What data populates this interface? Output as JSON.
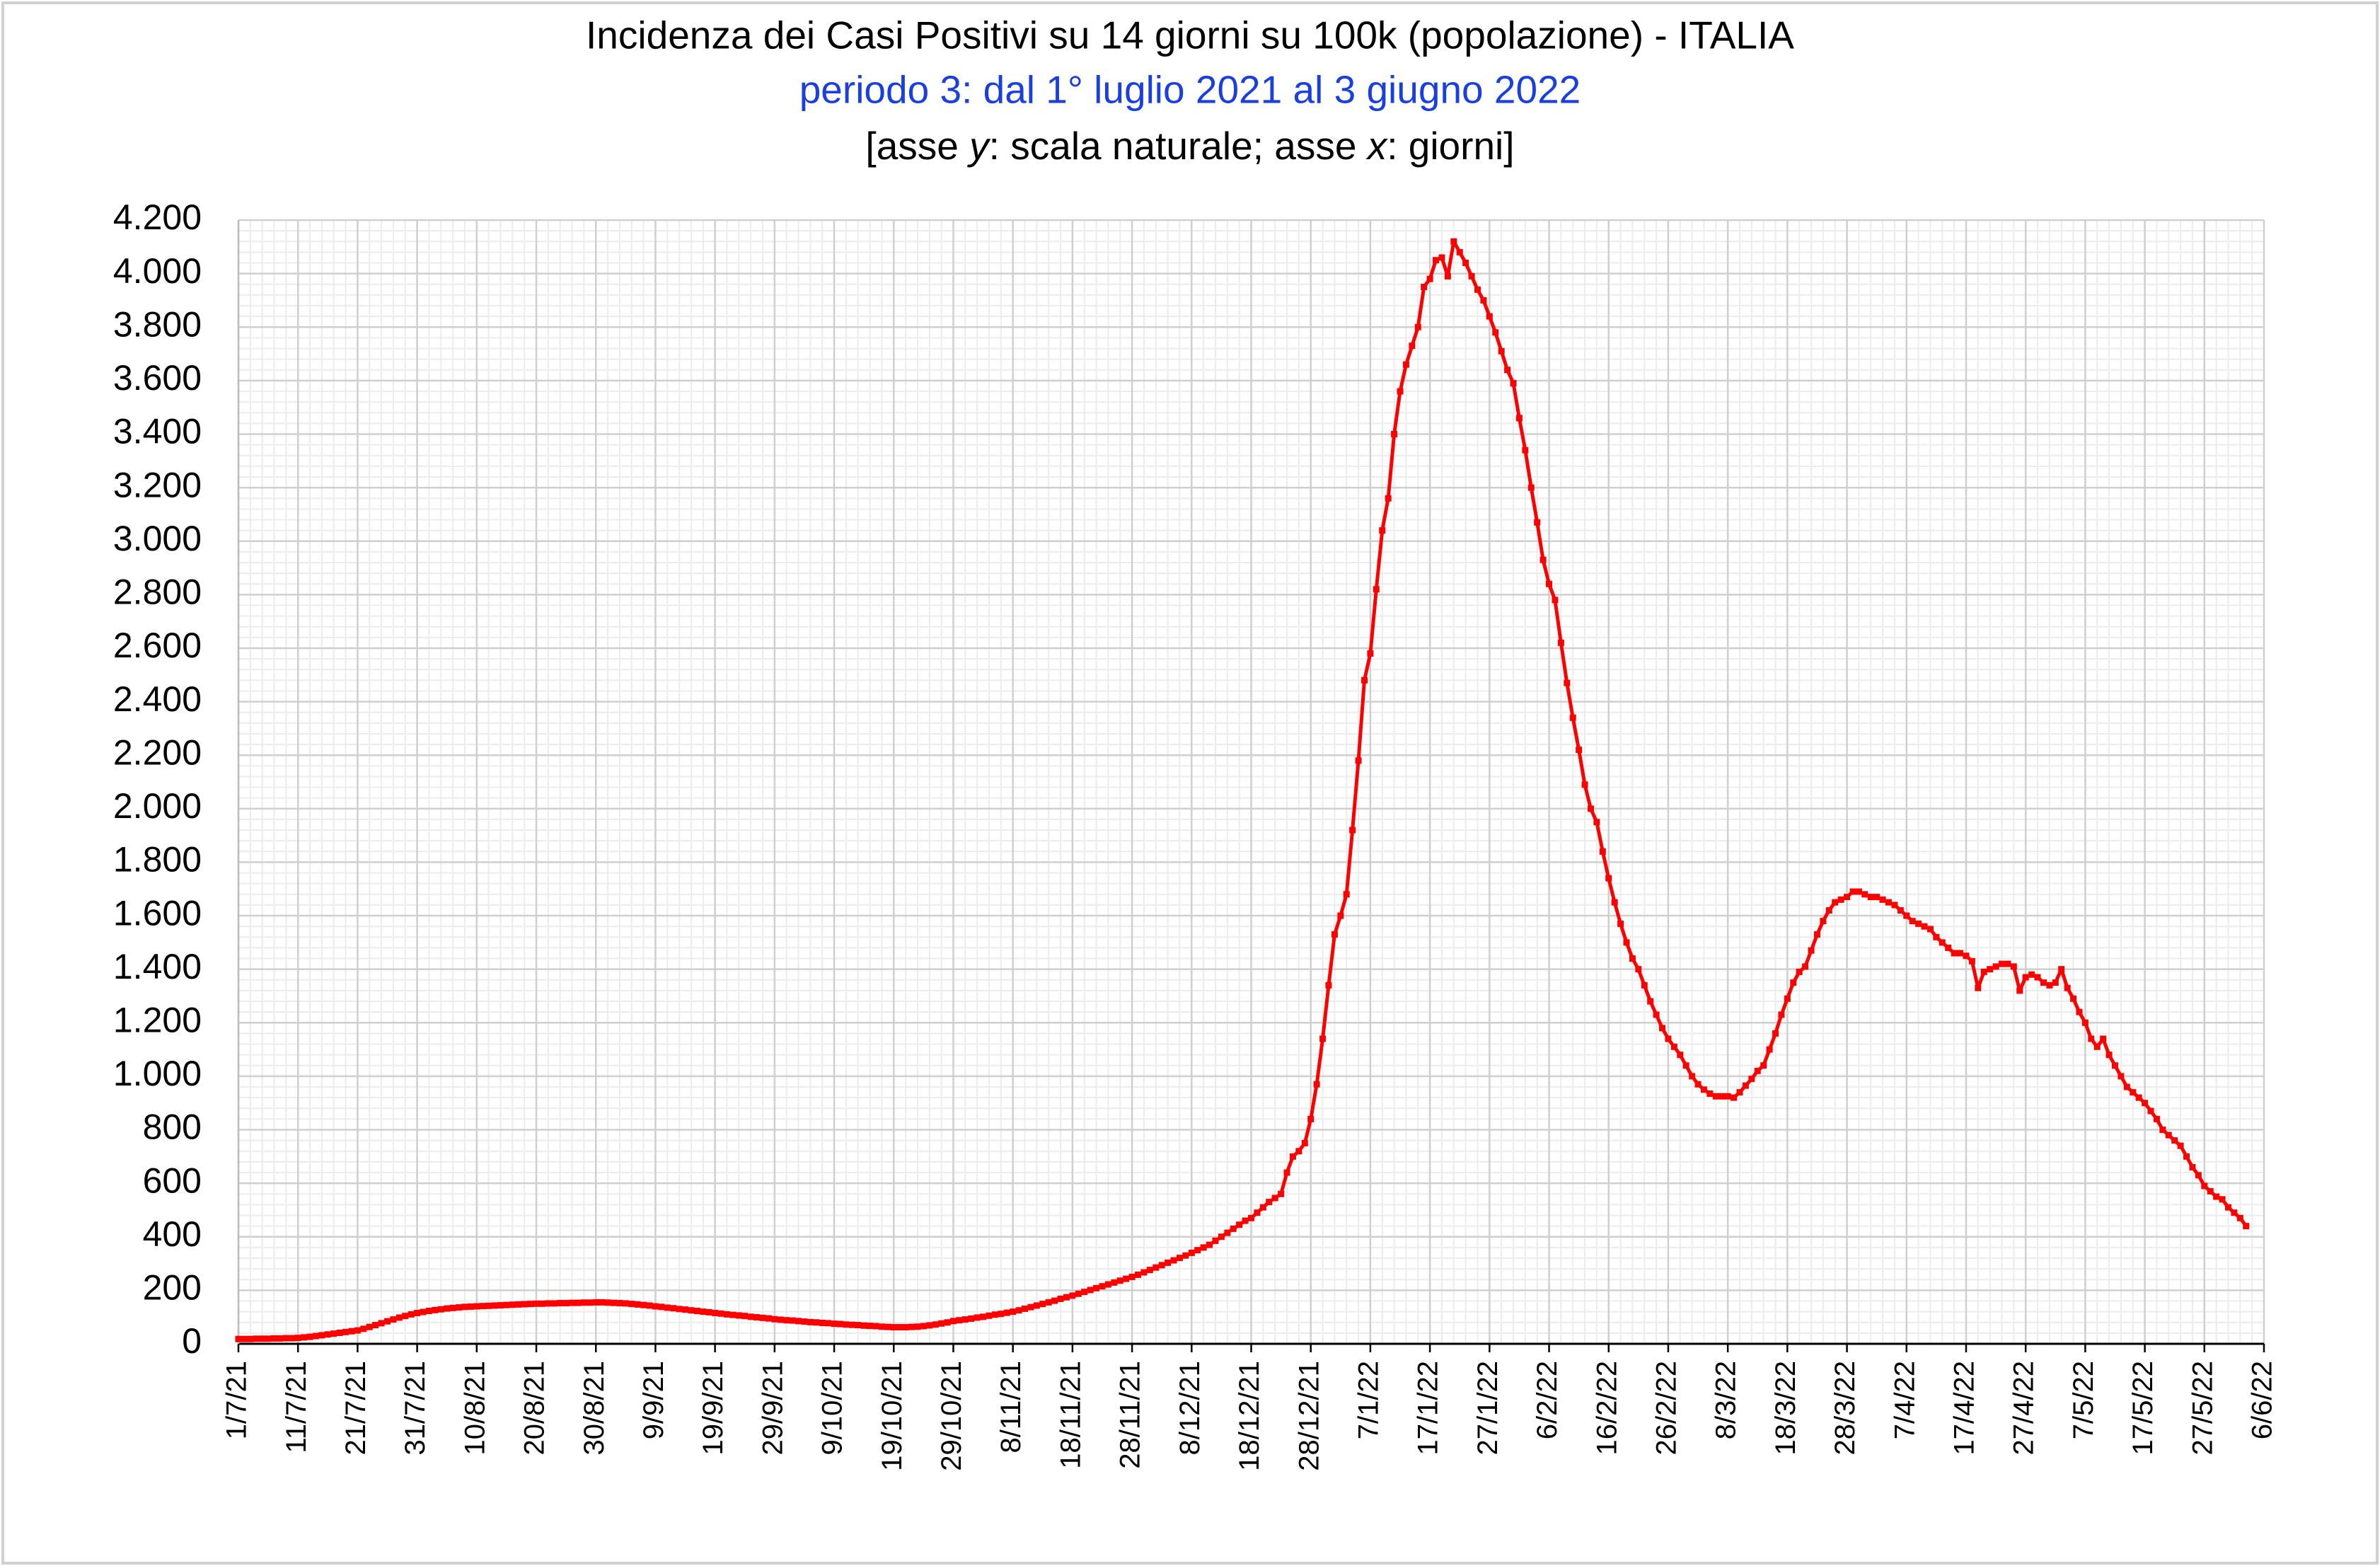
{
  "chart_data": {
    "type": "line",
    "title": "Incidenza dei Casi Positivi su 14 giorni su 100k (popolazione) - ITALIA",
    "subtitle": "periodo 3: dal 1° luglio 2021 al 3 giugno 2022",
    "note": [
      "[asse ",
      "y",
      ": scala naturale; asse ",
      "x",
      ": giorni]"
    ],
    "categories": [
      "1/7/21",
      null,
      null,
      null,
      null,
      null,
      null,
      null,
      null,
      null,
      "11/7/21",
      null,
      null,
      null,
      null,
      null,
      null,
      null,
      null,
      null,
      "21/7/21",
      null,
      null,
      null,
      null,
      null,
      null,
      null,
      null,
      null,
      "31/7/21",
      null,
      null,
      null,
      null,
      null,
      null,
      null,
      null,
      null,
      "10/8/21",
      null,
      null,
      null,
      null,
      null,
      null,
      null,
      null,
      null,
      "20/8/21",
      null,
      null,
      null,
      null,
      null,
      null,
      null,
      null,
      null,
      "30/8/21",
      null,
      null,
      null,
      null,
      null,
      null,
      null,
      null,
      null,
      "9/9/21",
      null,
      null,
      null,
      null,
      null,
      null,
      null,
      null,
      null,
      "19/9/21",
      null,
      null,
      null,
      null,
      null,
      null,
      null,
      null,
      null,
      "29/9/21",
      null,
      null,
      null,
      null,
      null,
      null,
      null,
      null,
      null,
      "9/10/21",
      null,
      null,
      null,
      null,
      null,
      null,
      null,
      null,
      null,
      "19/10/21",
      null,
      null,
      null,
      null,
      null,
      null,
      null,
      null,
      null,
      "29/10/21",
      null,
      null,
      null,
      null,
      null,
      null,
      null,
      null,
      null,
      "8/11/21",
      null,
      null,
      null,
      null,
      null,
      null,
      null,
      null,
      null,
      "18/11/21",
      null,
      null,
      null,
      null,
      null,
      null,
      null,
      null,
      null,
      "28/11/21",
      null,
      null,
      null,
      null,
      null,
      null,
      null,
      null,
      null,
      "8/12/21",
      null,
      null,
      null,
      null,
      null,
      null,
      null,
      null,
      null,
      "18/12/21",
      null,
      null,
      null,
      null,
      null,
      null,
      null,
      null,
      null,
      "28/12/21",
      null,
      null,
      null,
      null,
      null,
      null,
      null,
      null,
      null,
      "7/1/22",
      null,
      null,
      null,
      null,
      null,
      null,
      null,
      null,
      null,
      "17/1/22",
      null,
      null,
      null,
      null,
      null,
      null,
      null,
      null,
      null,
      "27/1/22",
      null,
      null,
      null,
      null,
      null,
      null,
      null,
      null,
      null,
      "6/2/22",
      null,
      null,
      null,
      null,
      null,
      null,
      null,
      null,
      null,
      "16/2/22",
      null,
      null,
      null,
      null,
      null,
      null,
      null,
      null,
      null,
      "26/2/22",
      null,
      null,
      null,
      null,
      null,
      null,
      null,
      null,
      null,
      "8/3/22",
      null,
      null,
      null,
      null,
      null,
      null,
      null,
      null,
      null,
      "18/3/22",
      null,
      null,
      null,
      null,
      null,
      null,
      null,
      null,
      null,
      "28/3/22",
      null,
      null,
      null,
      null,
      null,
      null,
      null,
      null,
      null,
      "7/4/22",
      null,
      null,
      null,
      null,
      null,
      null,
      null,
      null,
      null,
      "17/4/22",
      null,
      null,
      null,
      null,
      null,
      null,
      null,
      null,
      null,
      "27/4/22",
      null,
      null,
      null,
      null,
      null,
      null,
      null,
      null,
      null,
      "7/5/22",
      null,
      null,
      null,
      null,
      null,
      null,
      null,
      null,
      null,
      "17/5/22",
      null,
      null,
      null,
      null,
      null,
      null,
      null,
      null,
      null,
      "27/5/22",
      null,
      null,
      null,
      null,
      null,
      null,
      null,
      null,
      null,
      "6/6/22"
    ],
    "color": "#ff0000",
    "values": [
      18,
      18,
      18,
      19,
      19,
      19,
      20,
      20,
      21,
      21,
      22,
      24,
      26,
      29,
      32,
      35,
      38,
      41,
      44,
      47,
      50,
      56,
      63,
      70,
      77,
      84,
      91,
      98,
      104,
      110,
      115,
      119,
      123,
      126,
      129,
      132,
      134,
      136,
      138,
      139,
      140,
      141,
      142,
      143,
      144,
      145,
      146,
      147,
      148,
      149,
      150,
      150,
      151,
      151,
      152,
      152,
      153,
      153,
      154,
      154,
      155,
      155,
      154,
      153,
      152,
      151,
      149,
      147,
      145,
      143,
      140,
      138,
      135,
      133,
      130,
      128,
      125,
      123,
      120,
      118,
      115,
      113,
      110,
      108,
      106,
      104,
      101,
      99,
      97,
      95,
      92,
      90,
      88,
      87,
      85,
      83,
      81,
      80,
      78,
      77,
      75,
      74,
      72,
      71,
      70,
      68,
      67,
      66,
      64,
      63,
      62,
      62,
      62,
      63,
      64,
      66,
      69,
      72,
      76,
      80,
      85,
      88,
      91,
      94,
      98,
      101,
      105,
      109,
      112,
      116,
      120,
      125,
      131,
      137,
      143,
      149,
      155,
      161,
      168,
      174,
      180,
      187,
      194,
      201,
      208,
      215,
      222,
      229,
      236,
      243,
      250,
      258,
      267,
      276,
      285,
      294,
      303,
      312,
      321,
      330,
      340,
      350,
      360,
      370,
      385,
      400,
      415,
      430,
      445,
      460,
      470,
      490,
      510,
      530,
      545,
      560,
      640,
      700,
      720,
      750,
      840,
      970,
      1140,
      1340,
      1530,
      1600,
      1680,
      1920,
      2180,
      2480,
      2580,
      2820,
      3040,
      3160,
      3400,
      3560,
      3660,
      3730,
      3800,
      3950,
      3980,
      4050,
      4060,
      3990,
      4120,
      4080,
      4040,
      3990,
      3940,
      3900,
      3840,
      3780,
      3710,
      3640,
      3590,
      3460,
      3340,
      3200,
      3070,
      2930,
      2840,
      2780,
      2620,
      2470,
      2340,
      2220,
      2090,
      2000,
      1950,
      1840,
      1740,
      1650,
      1570,
      1500,
      1440,
      1400,
      1340,
      1280,
      1230,
      1180,
      1140,
      1110,
      1080,
      1040,
      1000,
      970,
      950,
      935,
      925,
      925,
      925,
      920,
      940,
      965,
      990,
      1020,
      1040,
      1100,
      1160,
      1230,
      1290,
      1350,
      1390,
      1410,
      1470,
      1530,
      1580,
      1620,
      1650,
      1660,
      1670,
      1690,
      1690,
      1680,
      1670,
      1670,
      1660,
      1650,
      1640,
      1620,
      1600,
      1580,
      1570,
      1560,
      1550,
      1520,
      1500,
      1480,
      1460,
      1460,
      1450,
      1430,
      1330,
      1390,
      1400,
      1410,
      1420,
      1420,
      1410,
      1320,
      1370,
      1380,
      1370,
      1350,
      1340,
      1350,
      1400,
      1330,
      1290,
      1240,
      1200,
      1140,
      1110,
      1140,
      1080,
      1040,
      1000,
      960,
      940,
      920,
      900,
      870,
      840,
      800,
      780,
      760,
      740,
      700,
      660,
      630,
      590,
      570,
      550,
      540,
      510,
      490,
      470,
      440,
      null,
      null,
      null
    ],
    "ylim": [
      0,
      4200
    ],
    "yticks": [
      0,
      200,
      400,
      600,
      800,
      {
        "value": 1000,
        "label": "1.000"
      },
      {
        "value": 1200,
        "label": "1.200"
      },
      {
        "value": 1400,
        "label": "1.400"
      },
      {
        "value": 1600,
        "label": "1.600"
      },
      {
        "value": 1800,
        "label": "1.800"
      },
      {
        "value": 2000,
        "label": "2.000"
      },
      {
        "value": 2200,
        "label": "2.200"
      },
      {
        "value": 2400,
        "label": "2.400"
      },
      {
        "value": 2600,
        "label": "2.600"
      },
      {
        "value": 2800,
        "label": "2.800"
      },
      {
        "value": 3000,
        "label": "3.000"
      },
      {
        "value": 3200,
        "label": "3.200"
      },
      {
        "value": 3400,
        "label": "3.400"
      },
      {
        "value": 3600,
        "label": "3.600"
      },
      {
        "value": 3800,
        "label": "3.800"
      },
      {
        "value": 4000,
        "label": "4.000"
      },
      {
        "value": 4200,
        "label": "4.200"
      }
    ],
    "grid": true
  }
}
